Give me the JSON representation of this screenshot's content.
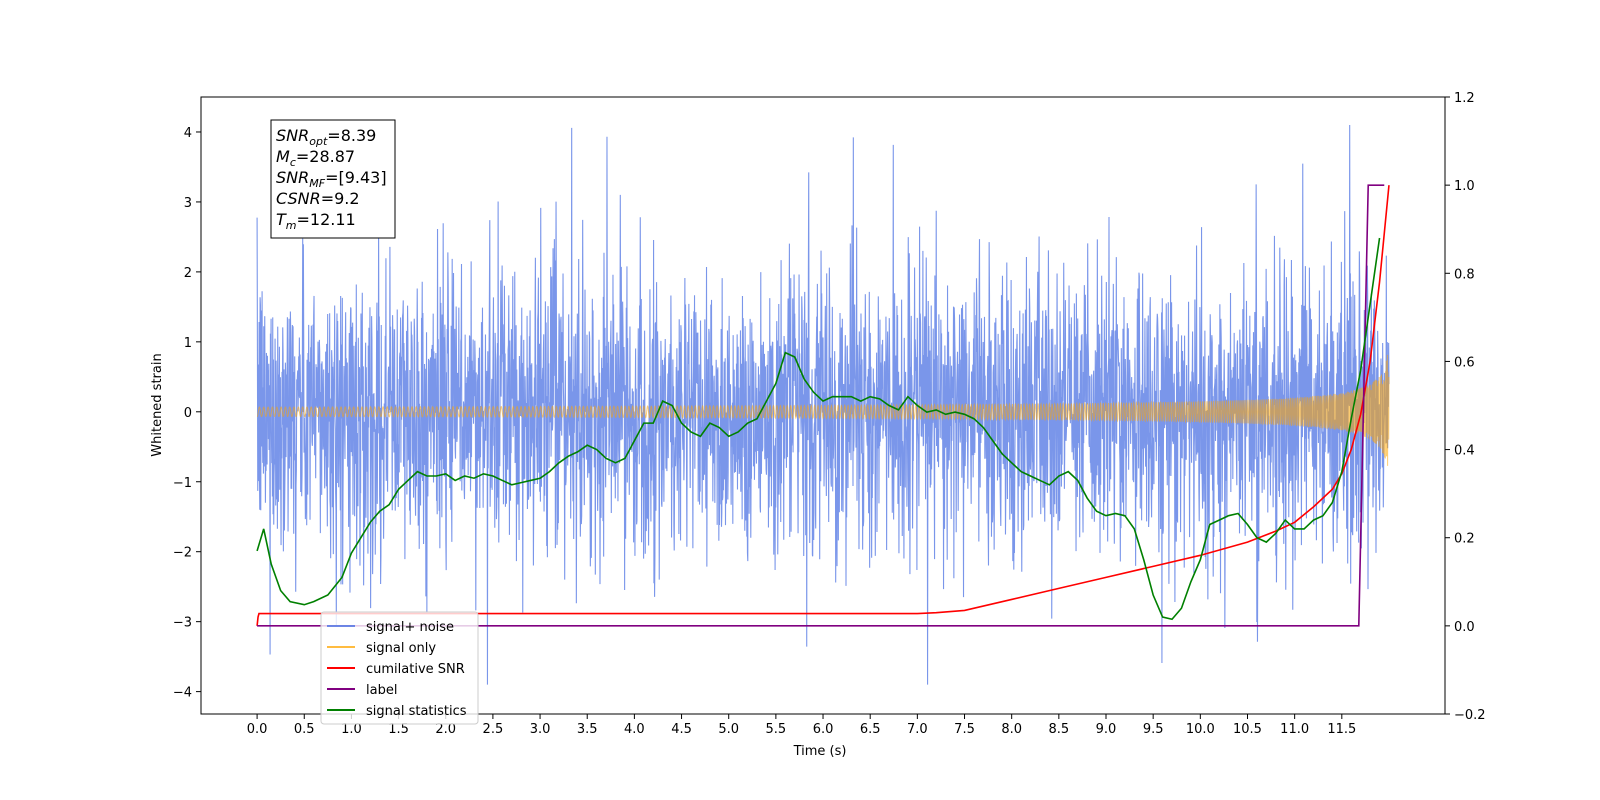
{
  "chart_data": {
    "type": "line",
    "xlabel": "Time (s)",
    "ylabel": "Whitened strain",
    "xlim": [
      -0.5947,
      12.594
    ],
    "ylim_left": [
      -4.32,
      4.5
    ],
    "ylim_right": [
      -0.2,
      1.2
    ],
    "x_ticks": [
      "0.0",
      "0.5",
      "1.0",
      "1.5",
      "2.0",
      "2.5",
      "3.0",
      "3.5",
      "4.0",
      "4.5",
      "5.0",
      "5.5",
      "6.0",
      "6.5",
      "7.0",
      "7.5",
      "8.0",
      "8.5",
      "9.0",
      "9.5",
      "10.0",
      "10.5",
      "11.0",
      "11.5"
    ],
    "y_ticks_left": [
      "4",
      "3",
      "2",
      "1",
      "0",
      "−1",
      "−2",
      "−3",
      "−4"
    ],
    "y_ticks_right": [
      "1.2",
      "1.0",
      "0.8",
      "0.6",
      "0.4",
      "0.2",
      "0.0",
      "−0.2"
    ],
    "grid": false,
    "legend_position": "lower-left",
    "annotation": [
      {
        "name": "SNR",
        "sub": "opt",
        "value": "=8.39"
      },
      {
        "name": "M",
        "sub": "c",
        "value": "=28.87"
      },
      {
        "name": "SNR",
        "sub": "MF",
        "value": "=[9.43]"
      },
      {
        "name": "CSNR",
        "sub": "",
        "value": "=9.2"
      },
      {
        "name": "T",
        "sub": "m",
        "value": "=12.11"
      }
    ],
    "series": [
      {
        "name": "signal+ noise",
        "color": "#4169e1",
        "axis": "left",
        "kind": "noisy-strain",
        "x_range": [
          0,
          12.0
        ],
        "approx_range": [
          -3.9,
          4.1
        ]
      },
      {
        "name": "signal only",
        "color": "#ffa500",
        "axis": "left",
        "kind": "chirp",
        "x_range": [
          0,
          12.0
        ],
        "final_amplitude": 1.0
      },
      {
        "name": "cumilative SNR",
        "color": "#ff0000",
        "axis": "right",
        "x": [
          0.0,
          0.01,
          0.02,
          7.0,
          7.2,
          7.5,
          8.0,
          8.5,
          9.0,
          9.5,
          10.0,
          10.5,
          10.8,
          11.0,
          11.2,
          11.4,
          11.5,
          11.6,
          11.7,
          11.8,
          11.9,
          12.0
        ],
        "y": [
          0.0,
          0.02,
          0.028,
          0.028,
          0.03,
          0.035,
          0.06,
          0.085,
          0.11,
          0.135,
          0.16,
          0.19,
          0.215,
          0.235,
          0.27,
          0.31,
          0.345,
          0.4,
          0.48,
          0.6,
          0.78,
          1.0
        ]
      },
      {
        "name": "label",
        "color": "#800080",
        "axis": "right",
        "x": [
          0.0,
          11.68,
          11.78,
          11.95
        ],
        "y": [
          0.0,
          0.0,
          1.0,
          1.0
        ]
      },
      {
        "name": "signal only",
        "color": "#ffa500",
        "axis": "none",
        "hidden_behind_legend": true
      },
      {
        "name": "signal statistics",
        "color": "#008000",
        "axis": "right",
        "x": [
          0.0,
          0.07,
          0.15,
          0.25,
          0.35,
          0.5,
          0.6,
          0.75,
          0.9,
          1.0,
          1.1,
          1.2,
          1.3,
          1.4,
          1.5,
          1.6,
          1.7,
          1.8,
          1.9,
          2.0,
          2.1,
          2.2,
          2.3,
          2.4,
          2.5,
          2.6,
          2.7,
          2.8,
          2.9,
          3.0,
          3.1,
          3.2,
          3.3,
          3.4,
          3.5,
          3.6,
          3.7,
          3.8,
          3.9,
          4.0,
          4.1,
          4.2,
          4.3,
          4.4,
          4.5,
          4.6,
          4.7,
          4.8,
          4.9,
          5.0,
          5.1,
          5.2,
          5.3,
          5.4,
          5.5,
          5.6,
          5.7,
          5.8,
          5.9,
          6.0,
          6.1,
          6.2,
          6.3,
          6.4,
          6.5,
          6.6,
          6.7,
          6.8,
          6.9,
          7.0,
          7.1,
          7.2,
          7.3,
          7.4,
          7.5,
          7.6,
          7.7,
          7.8,
          7.9,
          8.0,
          8.1,
          8.2,
          8.3,
          8.4,
          8.5,
          8.6,
          8.7,
          8.8,
          8.9,
          9.0,
          9.1,
          9.2,
          9.3,
          9.4,
          9.5,
          9.6,
          9.7,
          9.8,
          9.9,
          10.0,
          10.1,
          10.2,
          10.3,
          10.4,
          10.5,
          10.6,
          10.7,
          10.8,
          10.9,
          11.0,
          11.1,
          11.2,
          11.3,
          11.4,
          11.5,
          11.6,
          11.7,
          11.8,
          11.9
        ],
        "y": [
          0.17,
          0.22,
          0.14,
          0.08,
          0.055,
          0.048,
          0.055,
          0.07,
          0.11,
          0.165,
          0.2,
          0.235,
          0.26,
          0.275,
          0.31,
          0.33,
          0.35,
          0.34,
          0.34,
          0.345,
          0.33,
          0.34,
          0.335,
          0.345,
          0.34,
          0.33,
          0.32,
          0.325,
          0.33,
          0.335,
          0.35,
          0.37,
          0.385,
          0.395,
          0.41,
          0.4,
          0.38,
          0.37,
          0.38,
          0.42,
          0.46,
          0.46,
          0.51,
          0.5,
          0.46,
          0.44,
          0.43,
          0.46,
          0.45,
          0.43,
          0.44,
          0.46,
          0.47,
          0.51,
          0.55,
          0.62,
          0.61,
          0.56,
          0.53,
          0.51,
          0.52,
          0.52,
          0.52,
          0.51,
          0.52,
          0.515,
          0.5,
          0.49,
          0.52,
          0.5,
          0.485,
          0.49,
          0.48,
          0.485,
          0.48,
          0.47,
          0.45,
          0.42,
          0.39,
          0.37,
          0.35,
          0.34,
          0.33,
          0.32,
          0.34,
          0.35,
          0.33,
          0.29,
          0.26,
          0.25,
          0.255,
          0.25,
          0.22,
          0.15,
          0.07,
          0.02,
          0.015,
          0.04,
          0.1,
          0.15,
          0.23,
          0.24,
          0.25,
          0.255,
          0.23,
          0.2,
          0.19,
          0.21,
          0.24,
          0.22,
          0.22,
          0.24,
          0.25,
          0.28,
          0.35,
          0.47,
          0.58,
          0.73,
          0.88
        ]
      }
    ]
  }
}
